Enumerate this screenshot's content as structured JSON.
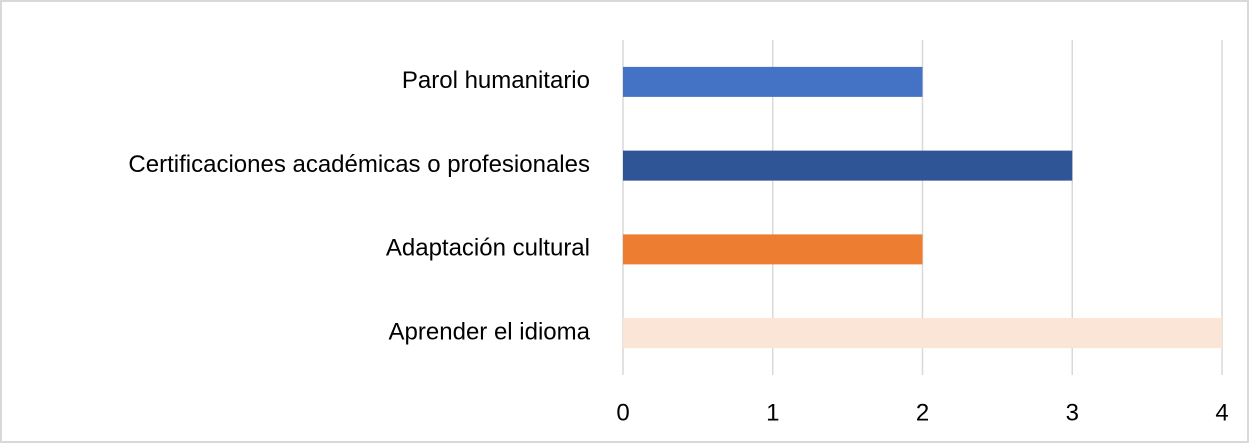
{
  "chart_data": {
    "type": "hbar",
    "categories": [
      "Parol humanitario",
      "Certificaciones académicas o profesionales",
      "Adaptación cultural",
      "Aprender el idioma"
    ],
    "values": [
      2,
      3,
      2,
      4
    ],
    "colors": [
      "#4472c4",
      "#2f5597",
      "#ed7d31",
      "#fbe5d6"
    ],
    "xlim": [
      0,
      4
    ],
    "xticks": [
      0,
      1,
      2,
      3,
      4
    ],
    "grid": true
  }
}
